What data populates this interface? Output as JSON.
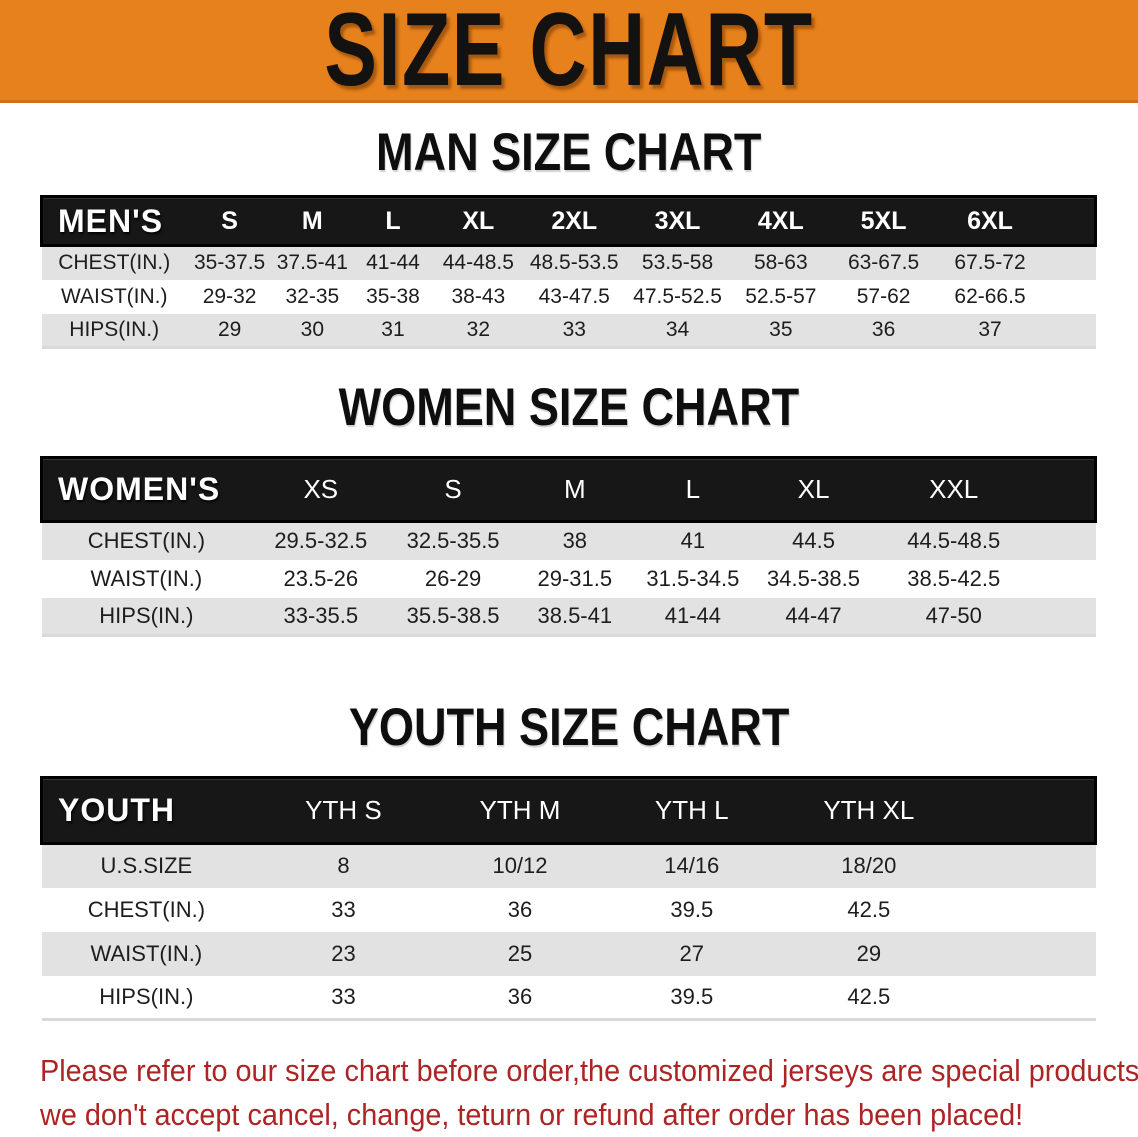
{
  "banner": {
    "title": "SIZE CHART"
  },
  "headings": {
    "men": "MAN SIZE CHART",
    "women": "WOMEN SIZE CHART",
    "youth": "YOUTH SIZE CHART"
  },
  "tables": {
    "men": {
      "label": "MEN'S",
      "columns": [
        "S",
        "M",
        "L",
        "XL",
        "2XL",
        "3XL",
        "4XL",
        "5XL",
        "6XL"
      ],
      "rows": [
        {
          "label": "CHEST(IN.)",
          "values": [
            "35-37.5",
            "37.5-41",
            "41-44",
            "44-48.5",
            "48.5-53.5",
            "53.5-58",
            "58-63",
            "63-67.5",
            "67.5-72"
          ]
        },
        {
          "label": "WAIST(IN.)",
          "values": [
            "29-32",
            "32-35",
            "35-38",
            "38-43",
            "43-47.5",
            "47.5-52.5",
            "52.5-57",
            "57-62",
            "62-66.5"
          ]
        },
        {
          "label": "HIPS(IN.)",
          "values": [
            "29",
            "30",
            "31",
            "32",
            "33",
            "34",
            "35",
            "36",
            "37"
          ]
        }
      ]
    },
    "women": {
      "label": "WOMEN'S",
      "columns": [
        "XS",
        "S",
        "M",
        "L",
        "XL",
        "XXL"
      ],
      "rows": [
        {
          "label": "CHEST(IN.)",
          "values": [
            "29.5-32.5",
            "32.5-35.5",
            "38",
            "41",
            "44.5",
            "44.5-48.5"
          ]
        },
        {
          "label": "WAIST(IN.)",
          "values": [
            "23.5-26",
            "26-29",
            "29-31.5",
            "31.5-34.5",
            "34.5-38.5",
            "38.5-42.5"
          ]
        },
        {
          "label": "HIPS(IN.)",
          "values": [
            "33-35.5",
            "35.5-38.5",
            "38.5-41",
            "41-44",
            "44-47",
            "47-50"
          ]
        }
      ]
    },
    "youth": {
      "label": "YOUTH",
      "columns": [
        "YTH S",
        "YTH M",
        "YTH L",
        "YTH XL"
      ],
      "rows": [
        {
          "label": "U.S.SIZE",
          "values": [
            "8",
            "10/12",
            "14/16",
            "18/20"
          ]
        },
        {
          "label": "CHEST(IN.)",
          "values": [
            "33",
            "36",
            "39.5",
            "42.5"
          ]
        },
        {
          "label": "WAIST(IN.)",
          "values": [
            "23",
            "25",
            "27",
            "29"
          ]
        },
        {
          "label": "HIPS(IN.)",
          "values": [
            "33",
            "36",
            "39.5",
            "42.5"
          ]
        }
      ]
    }
  },
  "footer": {
    "lines": [
      "Please refer to our size chart before order,the customized jerseys are special products,",
      "we don't accept cancel, change, teturn or refund after order has been placed!"
    ]
  },
  "colors": {
    "banner_bg": "#E6811C",
    "header_bar": "#171717",
    "row_alt": "#E2E2E2",
    "footer_text": "#AD2424"
  }
}
